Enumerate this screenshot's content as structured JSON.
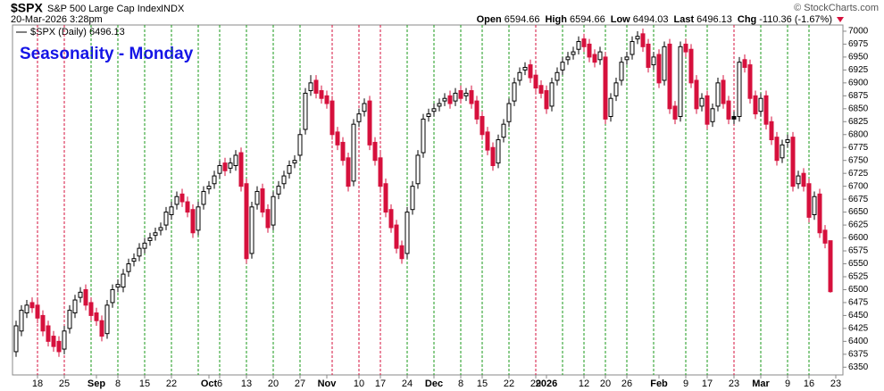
{
  "header": {
    "symbol": "$SPX",
    "name": "S&P 500 Large Cap Index",
    "exchange": "INDX",
    "timestamp": "20-Mar-2026 3:28pm",
    "credit": "© StockCharts.com",
    "quote": [
      {
        "label": "Open",
        "value": "6594.66"
      },
      {
        "label": "High",
        "value": "6594.66"
      },
      {
        "label": "Low",
        "value": "6494.03"
      },
      {
        "label": "Last",
        "value": "6496.13"
      },
      {
        "label": "Chg",
        "value": "-110.36 (-1.67%)"
      }
    ]
  },
  "chart_data": {
    "type": "candlestick",
    "title": "Seasonality - Monday",
    "legend": "$SPX (Daily) 6496.13",
    "up_color": "#000000",
    "down_color": "#d6103c",
    "categories": [
      null,
      null,
      null,
      null,
      "18",
      null,
      null,
      null,
      null,
      "25",
      null,
      null,
      null,
      null,
      null,
      "Sep",
      null,
      null,
      null,
      "8",
      null,
      null,
      null,
      null,
      "15",
      null,
      null,
      null,
      null,
      "22",
      null,
      null,
      null,
      null,
      null,
      null,
      "Oct",
      null,
      "6",
      null,
      null,
      null,
      null,
      "13",
      null,
      null,
      null,
      null,
      "20",
      null,
      null,
      null,
      null,
      "27",
      null,
      null,
      null,
      null,
      "Nov",
      null,
      null,
      null,
      null,
      null,
      "10",
      null,
      null,
      null,
      "17",
      null,
      null,
      null,
      null,
      "24",
      null,
      null,
      null,
      null,
      "Dec",
      null,
      null,
      null,
      null,
      "8",
      null,
      null,
      null,
      "15",
      null,
      null,
      null,
      null,
      "22",
      null,
      null,
      null,
      null,
      "29",
      null,
      "2026",
      null,
      null,
      null,
      null,
      null,
      null,
      "12",
      null,
      null,
      null,
      "20",
      null,
      null,
      null,
      "26",
      null,
      null,
      null,
      null,
      null,
      "Feb",
      null,
      null,
      null,
      null,
      "9",
      null,
      null,
      null,
      "17",
      null,
      null,
      null,
      null,
      "23",
      null,
      null,
      null,
      null,
      "Mar",
      null,
      null,
      null,
      null,
      "9",
      null,
      null,
      null,
      "16",
      null,
      null,
      null,
      null,
      "23"
    ],
    "open": [
      6380,
      6420,
      6455,
      6475,
      6470,
      6450,
      6430,
      6410,
      6400,
      6385,
      6425,
      6455,
      6485,
      6500,
      6475,
      6455,
      6440,
      6415,
      6475,
      6505,
      6505,
      6535,
      6555,
      6565,
      6580,
      6595,
      6605,
      6615,
      6625,
      6645,
      6665,
      6685,
      6670,
      6655,
      6615,
      6665,
      6695,
      6705,
      6725,
      6745,
      6735,
      6740,
      6765,
      6705,
      6570,
      6665,
      6695,
      6655,
      6625,
      6685,
      6705,
      6725,
      6745,
      6760,
      6810,
      6885,
      6905,
      6885,
      6875,
      6865,
      6805,
      6785,
      6755,
      6710,
      6825,
      6845,
      6865,
      6785,
      6755,
      6705,
      6655,
      6625,
      6585,
      6570,
      6655,
      6705,
      6765,
      6835,
      6845,
      6855,
      6865,
      6875,
      6865,
      6885,
      6875,
      6885,
      6865,
      6835,
      6805,
      6775,
      6745,
      6795,
      6825,
      6865,
      6905,
      6925,
      6935,
      6915,
      6895,
      6885,
      6855,
      6905,
      6925,
      6945,
      6955,
      6965,
      6985,
      6975,
      6955,
      6945,
      6950,
      6835,
      6875,
      6905,
      6945,
      6955,
      6985,
      6995,
      6975,
      6935,
      6955,
      6905,
      6975,
      6855,
      6835,
      6975,
      6965,
      6905,
      6855,
      6875,
      6825,
      6855,
      6905,
      6865,
      6835,
      6835,
      6945,
      6935,
      6875,
      6845,
      6875,
      6825,
      6795,
      6755,
      6785,
      6795,
      6705,
      6725,
      6705,
      6645,
      6685,
      6615,
      6594.66,
      null
    ],
    "high": [
      6440,
      6470,
      6480,
      6485,
      6480,
      6460,
      6440,
      6420,
      6410,
      6430,
      6470,
      6490,
      6505,
      6510,
      6485,
      6465,
      6450,
      6480,
      6510,
      6520,
      6540,
      6560,
      6570,
      6590,
      6600,
      6610,
      6620,
      6630,
      6660,
      6670,
      6690,
      6695,
      6680,
      6665,
      6670,
      6700,
      6710,
      6730,
      6750,
      6755,
      6755,
      6770,
      6775,
      6715,
      6670,
      6700,
      6705,
      6665,
      6690,
      6710,
      6730,
      6750,
      6760,
      6810,
      6890,
      6915,
      6915,
      6895,
      6885,
      6875,
      6815,
      6795,
      6765,
      6830,
      6850,
      6870,
      6875,
      6795,
      6765,
      6715,
      6665,
      6635,
      6595,
      6660,
      6710,
      6770,
      6840,
      6850,
      6860,
      6870,
      6880,
      6885,
      6890,
      6895,
      6890,
      6895,
      6875,
      6845,
      6815,
      6785,
      6800,
      6830,
      6870,
      6910,
      6930,
      6940,
      6945,
      6925,
      6905,
      6895,
      6910,
      6930,
      6950,
      6960,
      6970,
      6990,
      6995,
      6985,
      6965,
      6970,
      6960,
      6880,
      6910,
      6950,
      6960,
      6990,
      7000,
      7005,
      6985,
      6960,
      6965,
      6980,
      6985,
      6865,
      6980,
      6985,
      6975,
      6915,
      6880,
      6885,
      6860,
      6910,
      6915,
      6875,
      6845,
      6950,
      6955,
      6945,
      6885,
      6880,
      6885,
      6835,
      6805,
      6790,
      6800,
      6805,
      6730,
      6735,
      6715,
      6690,
      6695,
      6625,
      6594.66,
      null
    ],
    "low": [
      6370,
      6410,
      6445,
      6455,
      6435,
      6410,
      6390,
      6380,
      6370,
      6375,
      6415,
      6445,
      6475,
      6460,
      6440,
      6430,
      6400,
      6405,
      6465,
      6495,
      6495,
      6525,
      6545,
      6555,
      6570,
      6585,
      6595,
      6605,
      6615,
      6635,
      6655,
      6660,
      6640,
      6600,
      6605,
      6655,
      6685,
      6695,
      6715,
      6720,
      6725,
      6730,
      6690,
      6550,
      6560,
      6655,
      6640,
      6610,
      6615,
      6675,
      6695,
      6715,
      6735,
      6750,
      6800,
      6875,
      6870,
      6860,
      6850,
      6790,
      6770,
      6740,
      6690,
      6700,
      6815,
      6835,
      6770,
      6740,
      6690,
      6640,
      6610,
      6570,
      6550,
      6560,
      6645,
      6695,
      6755,
      6825,
      6835,
      6845,
      6855,
      6850,
      6855,
      6860,
      6865,
      6850,
      6820,
      6790,
      6760,
      6730,
      6735,
      6785,
      6815,
      6855,
      6895,
      6915,
      6900,
      6880,
      6870,
      6840,
      6845,
      6895,
      6915,
      6935,
      6945,
      6955,
      6960,
      6940,
      6930,
      6935,
      6820,
      6825,
      6865,
      6895,
      6935,
      6945,
      6975,
      6960,
      6920,
      6925,
      6890,
      6895,
      6840,
      6820,
      6825,
      6950,
      6890,
      6840,
      6845,
      6810,
      6815,
      6845,
      6850,
      6820,
      6820,
      6825,
      6920,
      6860,
      6830,
      6835,
      6810,
      6780,
      6740,
      6745,
      6775,
      6690,
      6695,
      6690,
      6630,
      6635,
      6600,
      6580,
      6494.03,
      null
    ],
    "close": [
      6430,
      6460,
      6470,
      6465,
      6445,
      6420,
      6400,
      6390,
      6380,
      6420,
      6460,
      6480,
      6495,
      6470,
      6450,
      6440,
      6410,
      6470,
      6500,
      6510,
      6530,
      6550,
      6560,
      6580,
      6590,
      6600,
      6610,
      6620,
      6650,
      6660,
      6680,
      6670,
      6650,
      6610,
      6660,
      6690,
      6700,
      6720,
      6740,
      6730,
      6745,
      6760,
      6700,
      6560,
      6660,
      6690,
      6650,
      6620,
      6680,
      6700,
      6720,
      6740,
      6750,
      6800,
      6880,
      6900,
      6880,
      6870,
      6860,
      6800,
      6780,
      6750,
      6700,
      6820,
      6840,
      6860,
      6780,
      6750,
      6700,
      6650,
      6620,
      6580,
      6560,
      6650,
      6700,
      6760,
      6830,
      6840,
      6850,
      6860,
      6870,
      6860,
      6880,
      6870,
      6880,
      6860,
      6830,
      6800,
      6770,
      6740,
      6790,
      6820,
      6860,
      6900,
      6920,
      6930,
      6910,
      6890,
      6880,
      6850,
      6900,
      6920,
      6940,
      6950,
      6960,
      6980,
      6970,
      6950,
      6940,
      6960,
      6830,
      6870,
      6900,
      6940,
      6950,
      6980,
      6990,
      6970,
      6930,
      6950,
      6900,
      6970,
      6850,
      6830,
      6970,
      6960,
      6900,
      6850,
      6870,
      6820,
      6850,
      6900,
      6860,
      6830,
      6830,
      6940,
      6930,
      6870,
      6840,
      6870,
      6820,
      6790,
      6750,
      6780,
      6790,
      6700,
      6720,
      6700,
      6640,
      6680,
      6610,
      6590,
      6496.13,
      null
    ],
    "vlines": [
      {
        "at": 4,
        "color": "#d6103c"
      },
      {
        "at": 9,
        "color": "#d6103c"
      },
      {
        "at": 14,
        "color": "#1a9a1a"
      },
      {
        "at": 19,
        "color": "#1a9a1a"
      },
      {
        "at": 24,
        "color": "#1a9a1a"
      },
      {
        "at": 29,
        "color": "#1a9a1a"
      },
      {
        "at": 34,
        "color": "#1a9a1a"
      },
      {
        "at": 38,
        "color": "#1a9a1a"
      },
      {
        "at": 43,
        "color": "#1a9a1a"
      },
      {
        "at": 48,
        "color": "#1a9a1a"
      },
      {
        "at": 53,
        "color": "#1a9a1a"
      },
      {
        "at": 59,
        "color": "#d6103c"
      },
      {
        "at": 64,
        "color": "#d6103c"
      },
      {
        "at": 68,
        "color": "#d6103c"
      },
      {
        "at": 73,
        "color": "#1a9a1a"
      },
      {
        "at": 78,
        "color": "#1a9a1a"
      },
      {
        "at": 83,
        "color": "#1a9a1a"
      },
      {
        "at": 87,
        "color": "#1a9a1a"
      },
      {
        "at": 92,
        "color": "#1a9a1a"
      },
      {
        "at": 97,
        "color": "#d6103c"
      },
      {
        "at": 102,
        "color": "#1a9a1a"
      },
      {
        "at": 106,
        "color": "#1a9a1a"
      },
      {
        "at": 110,
        "color": "#1a9a1a"
      },
      {
        "at": 114,
        "color": "#1a9a1a"
      },
      {
        "at": 119,
        "color": "#1a9a1a"
      },
      {
        "at": 125,
        "color": "#1a9a1a"
      },
      {
        "at": 129,
        "color": "#1a9a1a"
      },
      {
        "at": 134,
        "color": "#d6103c"
      },
      {
        "at": 139,
        "color": "#1a9a1a"
      },
      {
        "at": 144,
        "color": "#1a9a1a"
      },
      {
        "at": 148,
        "color": "#1a9a1a"
      }
    ],
    "ylim": [
      6335,
      7012
    ],
    "yticks": [
      6350,
      6375,
      6400,
      6425,
      6450,
      6475,
      6500,
      6525,
      6550,
      6575,
      6600,
      6625,
      6650,
      6675,
      6700,
      6725,
      6750,
      6775,
      6800,
      6825,
      6850,
      6875,
      6900,
      6925,
      6950,
      6975,
      7000
    ]
  }
}
